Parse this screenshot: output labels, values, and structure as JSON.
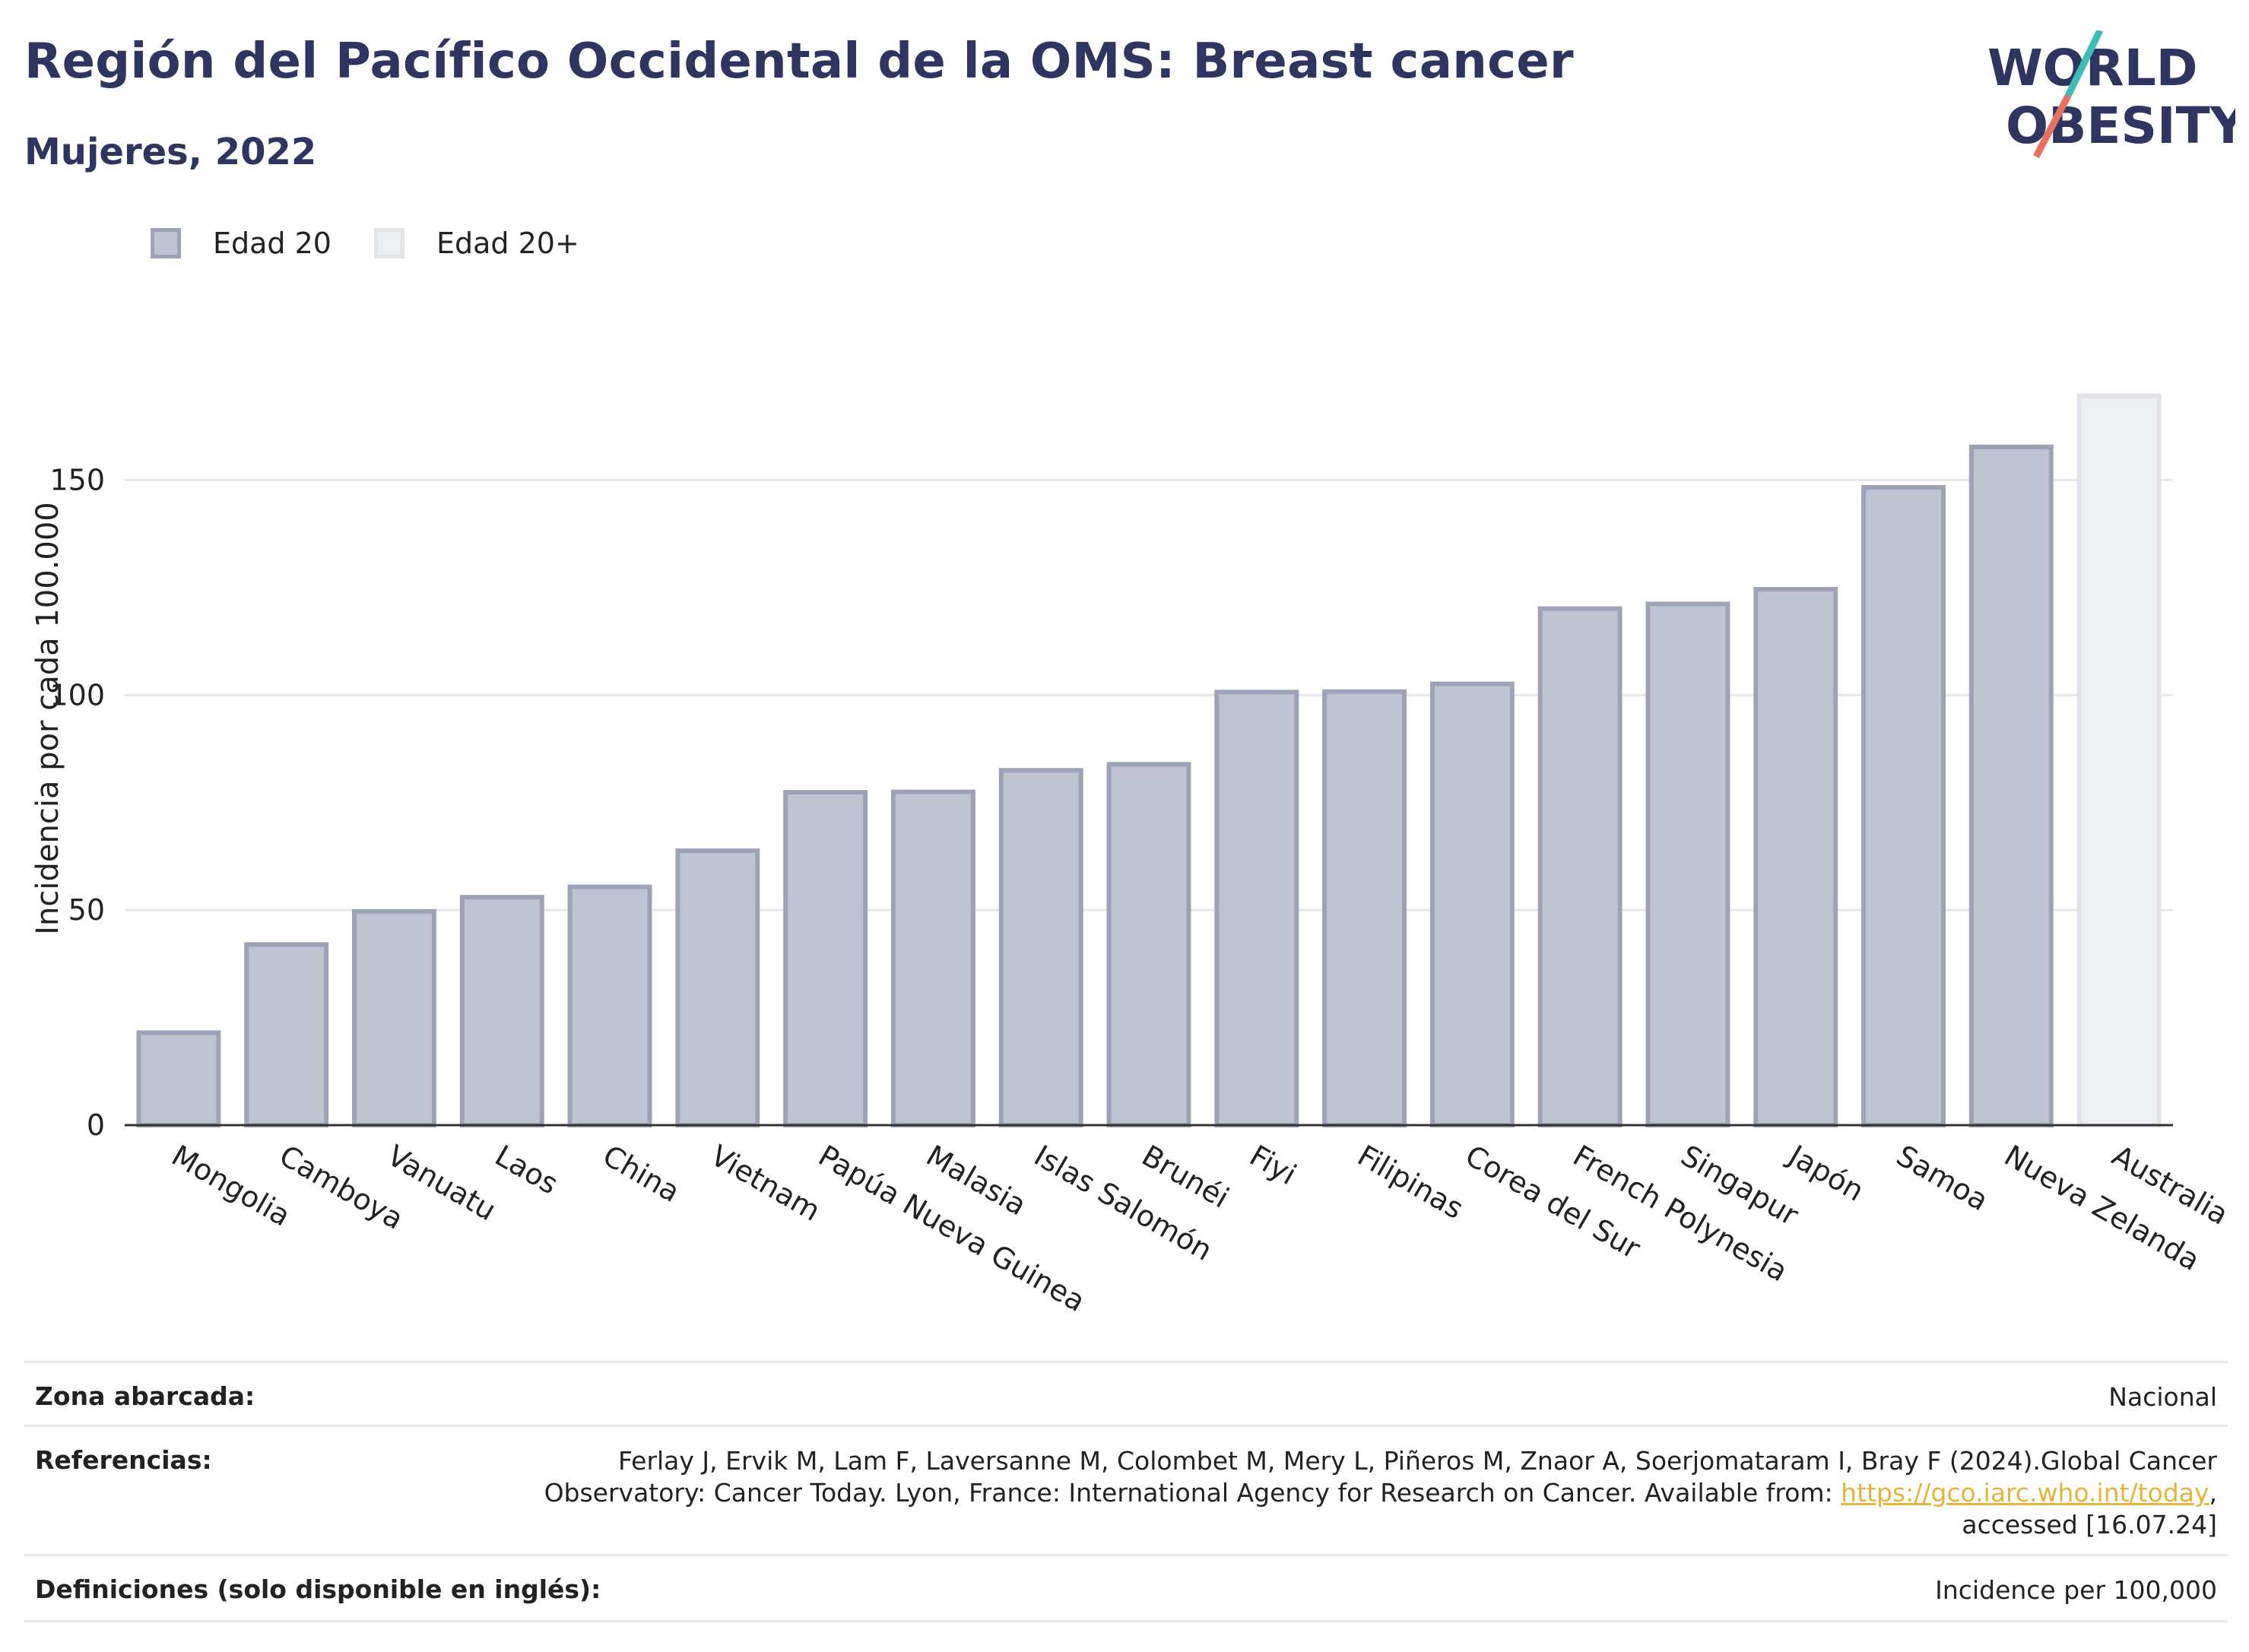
{
  "header": {
    "title": "Región del Pacífico Occidental de la OMS: Breast cancer",
    "subtitle": "Mujeres, 2022"
  },
  "logo": {
    "line1": "WORLD",
    "line2": "OBESITY",
    "colors": {
      "text": "#2d3560",
      "slash_teal": "#3dbdb5",
      "slash_coral": "#e8705f"
    }
  },
  "legend": {
    "items": [
      {
        "label": "Edad 20",
        "color": "#c0c3d0"
      },
      {
        "label": "Edad 20+",
        "color": "#eeeff3"
      }
    ]
  },
  "chart_data": {
    "type": "bar",
    "ylabel": "Incidencia por cada 100.000",
    "ylim": [
      0,
      175
    ],
    "yticks": [
      0,
      50,
      100,
      150
    ],
    "grid": true,
    "categories": [
      "Mongolia",
      "Camboya",
      "Vanuatu",
      "Laos",
      "China",
      "Vietnam",
      "Papúa Nueva Guinea",
      "Malasia",
      "Islas Salomón",
      "Brunéi",
      "Fiyi",
      "Filipinas",
      "Corea del Sur",
      "French Polynesia",
      "Singapur",
      "Japón",
      "Samoa",
      "Nueva Zelanda",
      "Australia"
    ],
    "values": [
      21.5,
      42,
      49.7,
      53,
      55.4,
      63.8,
      77.4,
      77.5,
      82.5,
      83.9,
      100.7,
      100.8,
      102.6,
      120.1,
      121.2,
      124.6,
      148.3,
      157.7,
      169.6
    ],
    "series_index": [
      0,
      0,
      0,
      0,
      0,
      0,
      0,
      0,
      0,
      0,
      0,
      0,
      0,
      0,
      0,
      0,
      0,
      0,
      1
    ],
    "series": [
      {
        "name": "Edad 20",
        "fill": "#c0c3d0",
        "stroke": "#9ea2b7"
      },
      {
        "name": "Edad 20+",
        "fill": "#eeeff3",
        "stroke": "#e1e3e9"
      }
    ]
  },
  "info_table": {
    "zona_label": "Zona abarcada:",
    "zona_value": "Nacional",
    "ref_label": "Referencias:",
    "ref_line1": "Ferlay J, Ervik M, Lam F, Laversanne M, Colombet M, Mery L, Piñeros M, Znaor A, Soerjomataram I, Bray F (2024).Global Cancer",
    "ref_line2_pre": "Observatory: Cancer Today. Lyon, France: International Agency for Research on Cancer. Available from: ",
    "ref_link": "https://gco.iarc.who.int/today",
    "ref_line2_post": ",",
    "ref_line3": "accessed [16.07.24]",
    "def_label": "Definiciones (solo disponible en inglés):",
    "def_value": "Incidence per 100,000"
  }
}
